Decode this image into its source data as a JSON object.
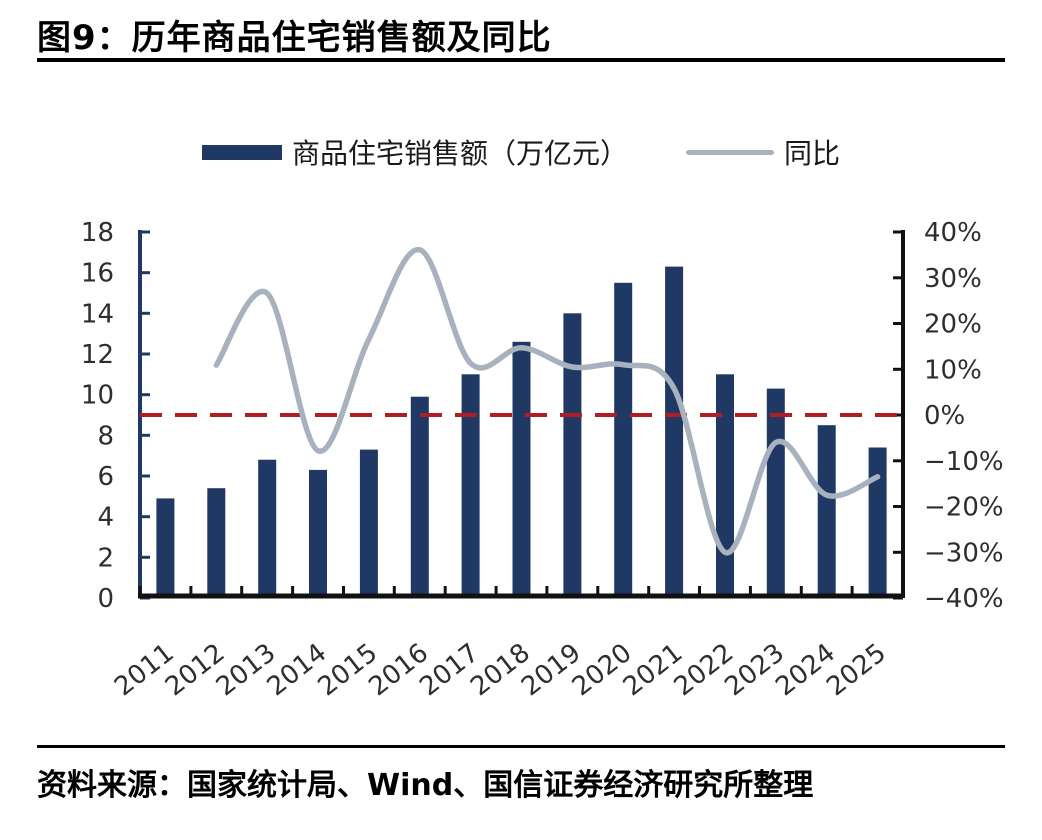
{
  "page": {
    "title": "图9：历年商品住宅销售额及同比",
    "source": "资料来源：国家统计局、Wind、国信证券经济研究所整理"
  },
  "legend": {
    "bars_label": "商品住宅销售额（万亿元）",
    "line_label": "同比"
  },
  "colors": {
    "bar": "#1f3864",
    "line": "#a8b2bf",
    "zero_line": "#b01e24",
    "left_axis": "#1f3864",
    "axis_black": "#111111",
    "tick_label": "#2e2e2e"
  },
  "chart_data": {
    "type": "bar+line",
    "title": "图9：历年商品住宅销售额及同比",
    "categories": [
      "2011",
      "2012",
      "2013",
      "2014",
      "2015",
      "2016",
      "2017",
      "2018",
      "2019",
      "2020",
      "2021",
      "2022",
      "2023",
      "2024",
      "2025"
    ],
    "series": [
      {
        "name": "商品住宅销售额（万亿元）",
        "type": "bar",
        "axis": "left",
        "color": "#1f3864",
        "values": [
          4.9,
          5.4,
          6.8,
          6.3,
          7.3,
          9.9,
          11.0,
          12.6,
          14.0,
          15.5,
          16.3,
          11.0,
          10.3,
          8.5,
          7.4
        ]
      },
      {
        "name": "同比",
        "type": "line",
        "axis": "right",
        "unit": "%",
        "color": "#a8b2bf",
        "values": [
          null,
          10.9,
          26.6,
          -7.8,
          16.6,
          36.1,
          11.3,
          14.7,
          10.5,
          11.0,
          5.8,
          -30.0,
          -6.0,
          -17.5,
          -13.5
        ]
      }
    ],
    "left_axis": {
      "min": 0,
      "max": 18,
      "step": 2,
      "tick_labels": [
        "18",
        "16",
        "14",
        "12",
        "10",
        "8",
        "6",
        "4",
        "2",
        "0"
      ]
    },
    "right_axis": {
      "min": -40,
      "max": 40,
      "step": 10,
      "unit": "%",
      "tick_labels": [
        "40%",
        "30%",
        "20%",
        "10%",
        "0%",
        "−10%",
        "−20%",
        "−30%",
        "−40%"
      ]
    },
    "annotations": {
      "zero_reference_line": {
        "axis": "right",
        "value": 0,
        "style": "dashed",
        "color": "#b01e24"
      }
    },
    "layout": {
      "grid": false,
      "legend_position": "top-center",
      "x_label_rotation": -38
    }
  }
}
